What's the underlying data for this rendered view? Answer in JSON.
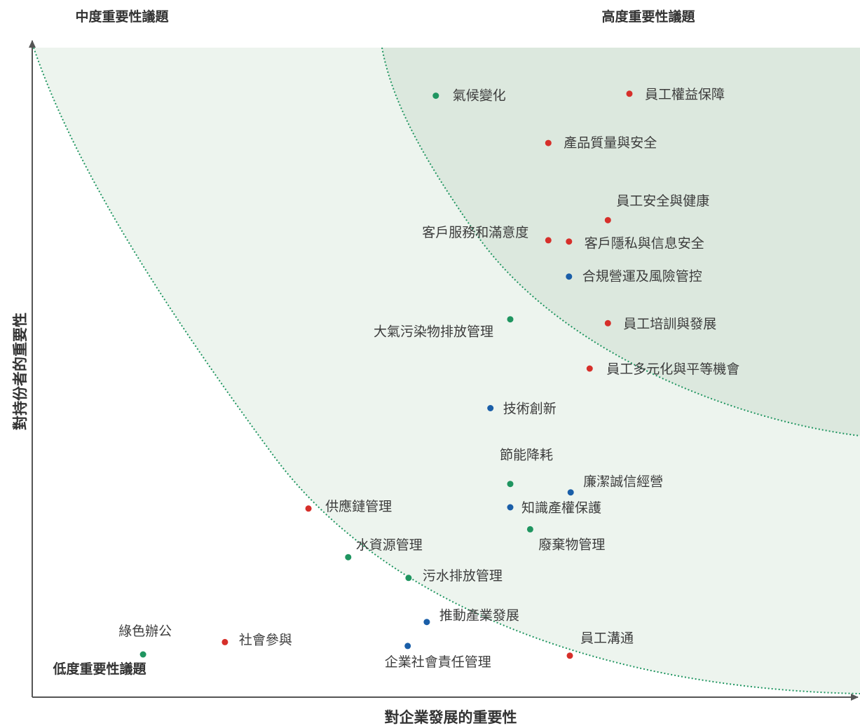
{
  "chart_data": {
    "type": "scatter",
    "xlabel": "對企業發展的重要性",
    "ylabel": "對持份者的重要性",
    "zones": {
      "medium": "中度重要性議題",
      "high": "高度重要性議題",
      "low": "低度重要性議題"
    },
    "category_colors": {
      "social": "#d62f2a",
      "environment": "#1f9560",
      "governance": "#1a5ea8"
    },
    "zone_colors": {
      "outer": "#edf4ee",
      "inner": "#dce8de",
      "boundary": "#1f9560",
      "axis": "#555555"
    },
    "xlim": [
      0,
      100
    ],
    "ylim": [
      0,
      100
    ],
    "grid": false,
    "points": [
      {
        "label": "員工權益保障",
        "x": 72.2,
        "y": 93.1,
        "category": "social"
      },
      {
        "label": "氣候變化",
        "x": 48.8,
        "y": 92.8,
        "category": "environment"
      },
      {
        "label": "產品質量與安全",
        "x": 62.4,
        "y": 85.5,
        "category": "social"
      },
      {
        "label": "員工安全與健康",
        "x": 69.6,
        "y": 73.6,
        "category": "social"
      },
      {
        "label": "客戶服務和滿意度",
        "x": 62.4,
        "y": 70.5,
        "category": "social"
      },
      {
        "label": "客戶隱私與信息安全",
        "x": 64.9,
        "y": 70.3,
        "category": "social"
      },
      {
        "label": "合規營運及風險管控",
        "x": 64.9,
        "y": 64.9,
        "category": "governance"
      },
      {
        "label": "大氣污染物排放管理",
        "x": 57.8,
        "y": 58.3,
        "category": "environment"
      },
      {
        "label": "員工培訓與發展",
        "x": 69.6,
        "y": 57.7,
        "category": "social"
      },
      {
        "label": "員工多元化與平等機會",
        "x": 67.4,
        "y": 50.7,
        "category": "social"
      },
      {
        "label": "技術創新",
        "x": 55.4,
        "y": 44.6,
        "category": "governance"
      },
      {
        "label": "節能降耗",
        "x": 57.8,
        "y": 32.9,
        "category": "environment"
      },
      {
        "label": "廉潔誠信經營",
        "x": 65.1,
        "y": 31.6,
        "category": "governance"
      },
      {
        "label": "供應鏈管理",
        "x": 33.4,
        "y": 29.1,
        "category": "social"
      },
      {
        "label": "知識產權保護",
        "x": 57.8,
        "y": 29.3,
        "category": "governance"
      },
      {
        "label": "廢棄物管理",
        "x": 60.2,
        "y": 25.9,
        "category": "environment"
      },
      {
        "label": "水資源管理",
        "x": 38.2,
        "y": 21.6,
        "category": "environment"
      },
      {
        "label": "污水排放管理",
        "x": 45.5,
        "y": 18.4,
        "category": "environment"
      },
      {
        "label": "推動產業發展",
        "x": 47.7,
        "y": 11.6,
        "category": "governance"
      },
      {
        "label": "綠色辦公",
        "x": 13.4,
        "y": 6.6,
        "category": "environment"
      },
      {
        "label": "社會參與",
        "x": 23.3,
        "y": 8.5,
        "category": "social"
      },
      {
        "label": "企業社會責任管理",
        "x": 45.4,
        "y": 7.9,
        "category": "governance"
      },
      {
        "label": "員工溝通",
        "x": 65.0,
        "y": 6.4,
        "category": "social"
      }
    ]
  }
}
